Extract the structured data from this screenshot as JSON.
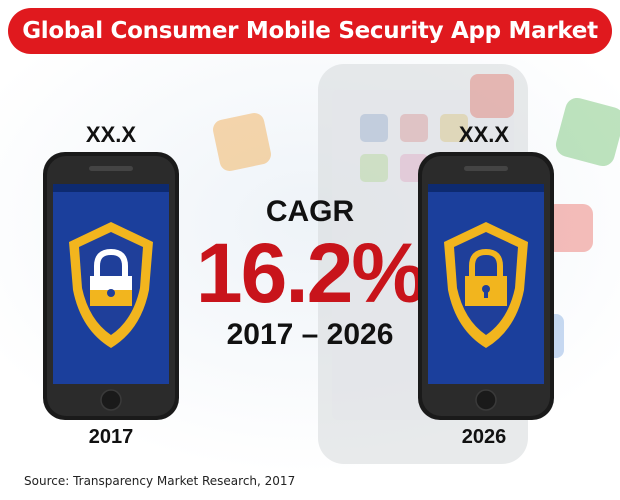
{
  "title": "Global Consumer Mobile Security App Market",
  "left": {
    "value": "XX.X",
    "year": "2017"
  },
  "right": {
    "value": "XX.X",
    "year": "2026"
  },
  "center": {
    "label": "CAGR",
    "value": "16.2%",
    "period": "2017 – 2026"
  },
  "source": "Source: Transparency Market Research, 2017",
  "colors": {
    "title_bg": "#e0191e",
    "cagr_value": "#c8141b",
    "shield_gold": "#f2b51e",
    "shield_blue": "#1f3f9a",
    "phone_body": "#1a1a1a"
  },
  "icons": [
    "padlock-icon",
    "shield-icon",
    "phone-icon"
  ]
}
